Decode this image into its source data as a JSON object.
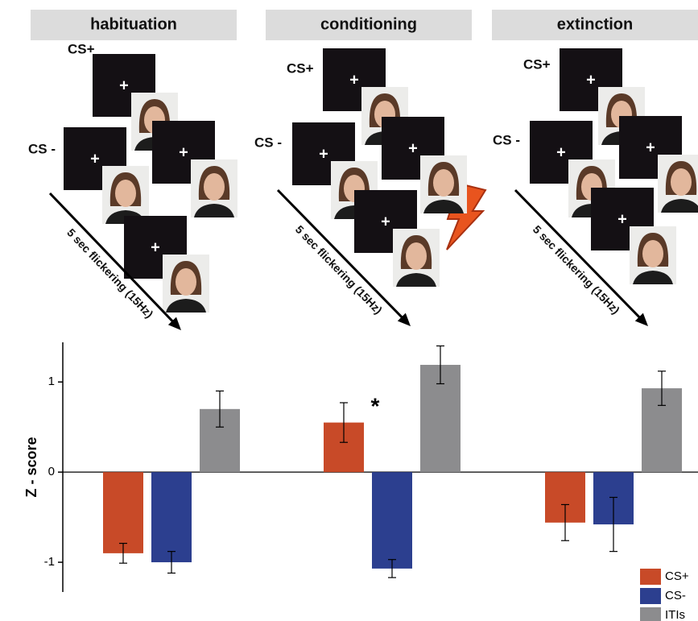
{
  "diagram": {
    "cs_plus_label": "CS+",
    "cs_minus_label": "CS -",
    "fixation": "+",
    "arrow_label": "5 sec flickering (15Hz)"
  },
  "chart_data": {
    "type": "bar",
    "categories": [
      "habituation",
      "conditioning",
      "extinction"
    ],
    "series": [
      {
        "name": "CS+",
        "color": "#c84a28",
        "values": [
          -0.9,
          0.55,
          -0.56
        ],
        "errors": [
          0.11,
          0.22,
          0.2
        ]
      },
      {
        "name": "CS-",
        "color": "#2c3f8f",
        "values": [
          -1.0,
          -1.07,
          -0.58
        ],
        "errors": [
          0.12,
          0.1,
          0.3
        ]
      },
      {
        "name": "ITIs",
        "color": "#8c8c8e",
        "values": [
          0.7,
          1.19,
          0.93
        ],
        "errors": [
          0.2,
          0.21,
          0.19
        ]
      }
    ],
    "y_label": "Z - score",
    "annotation": "*",
    "ylim": [
      -1.33,
      1.44
    ],
    "yticks": [
      -1,
      0,
      1
    ],
    "legend": "lower right"
  }
}
